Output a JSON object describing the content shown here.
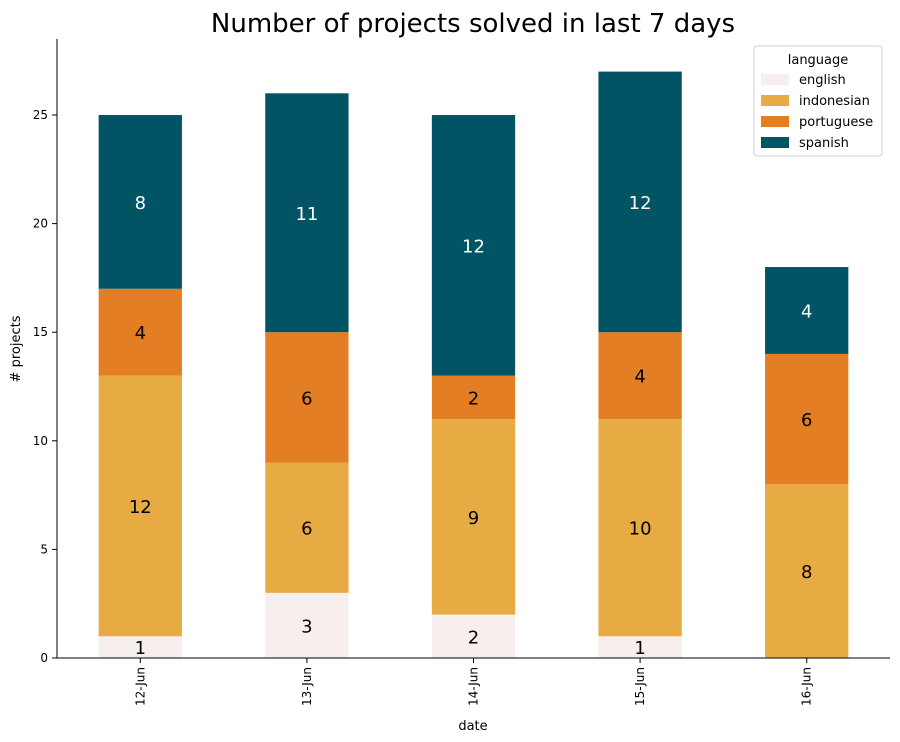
{
  "chart_data": {
    "type": "bar",
    "stacked": true,
    "title": "Number of projects solved in last 7 days",
    "xlabel": "date",
    "ylabel": "# projects",
    "categories": [
      "12-Jun",
      "13-Jun",
      "14-Jun",
      "15-Jun",
      "16-Jun"
    ],
    "ylim": [
      0,
      28.5
    ],
    "yticks": [
      0,
      5,
      10,
      15,
      20,
      25
    ],
    "grid": false,
    "legend": {
      "title": "language",
      "placement": "top-right"
    },
    "series": [
      {
        "name": "english",
        "color": "#f6efee",
        "label_color": "#000000",
        "values": [
          1,
          3,
          2,
          1,
          0
        ]
      },
      {
        "name": "indonesian",
        "color": "#e8aa42",
        "label_color": "#000000",
        "values": [
          12,
          6,
          9,
          10,
          8
        ]
      },
      {
        "name": "portuguese",
        "color": "#e47e25",
        "label_color": "#000000",
        "values": [
          4,
          6,
          2,
          4,
          6
        ]
      },
      {
        "name": "spanish",
        "color": "#025464",
        "label_color": "#ffffff",
        "values": [
          8,
          11,
          12,
          12,
          4
        ]
      }
    ]
  }
}
